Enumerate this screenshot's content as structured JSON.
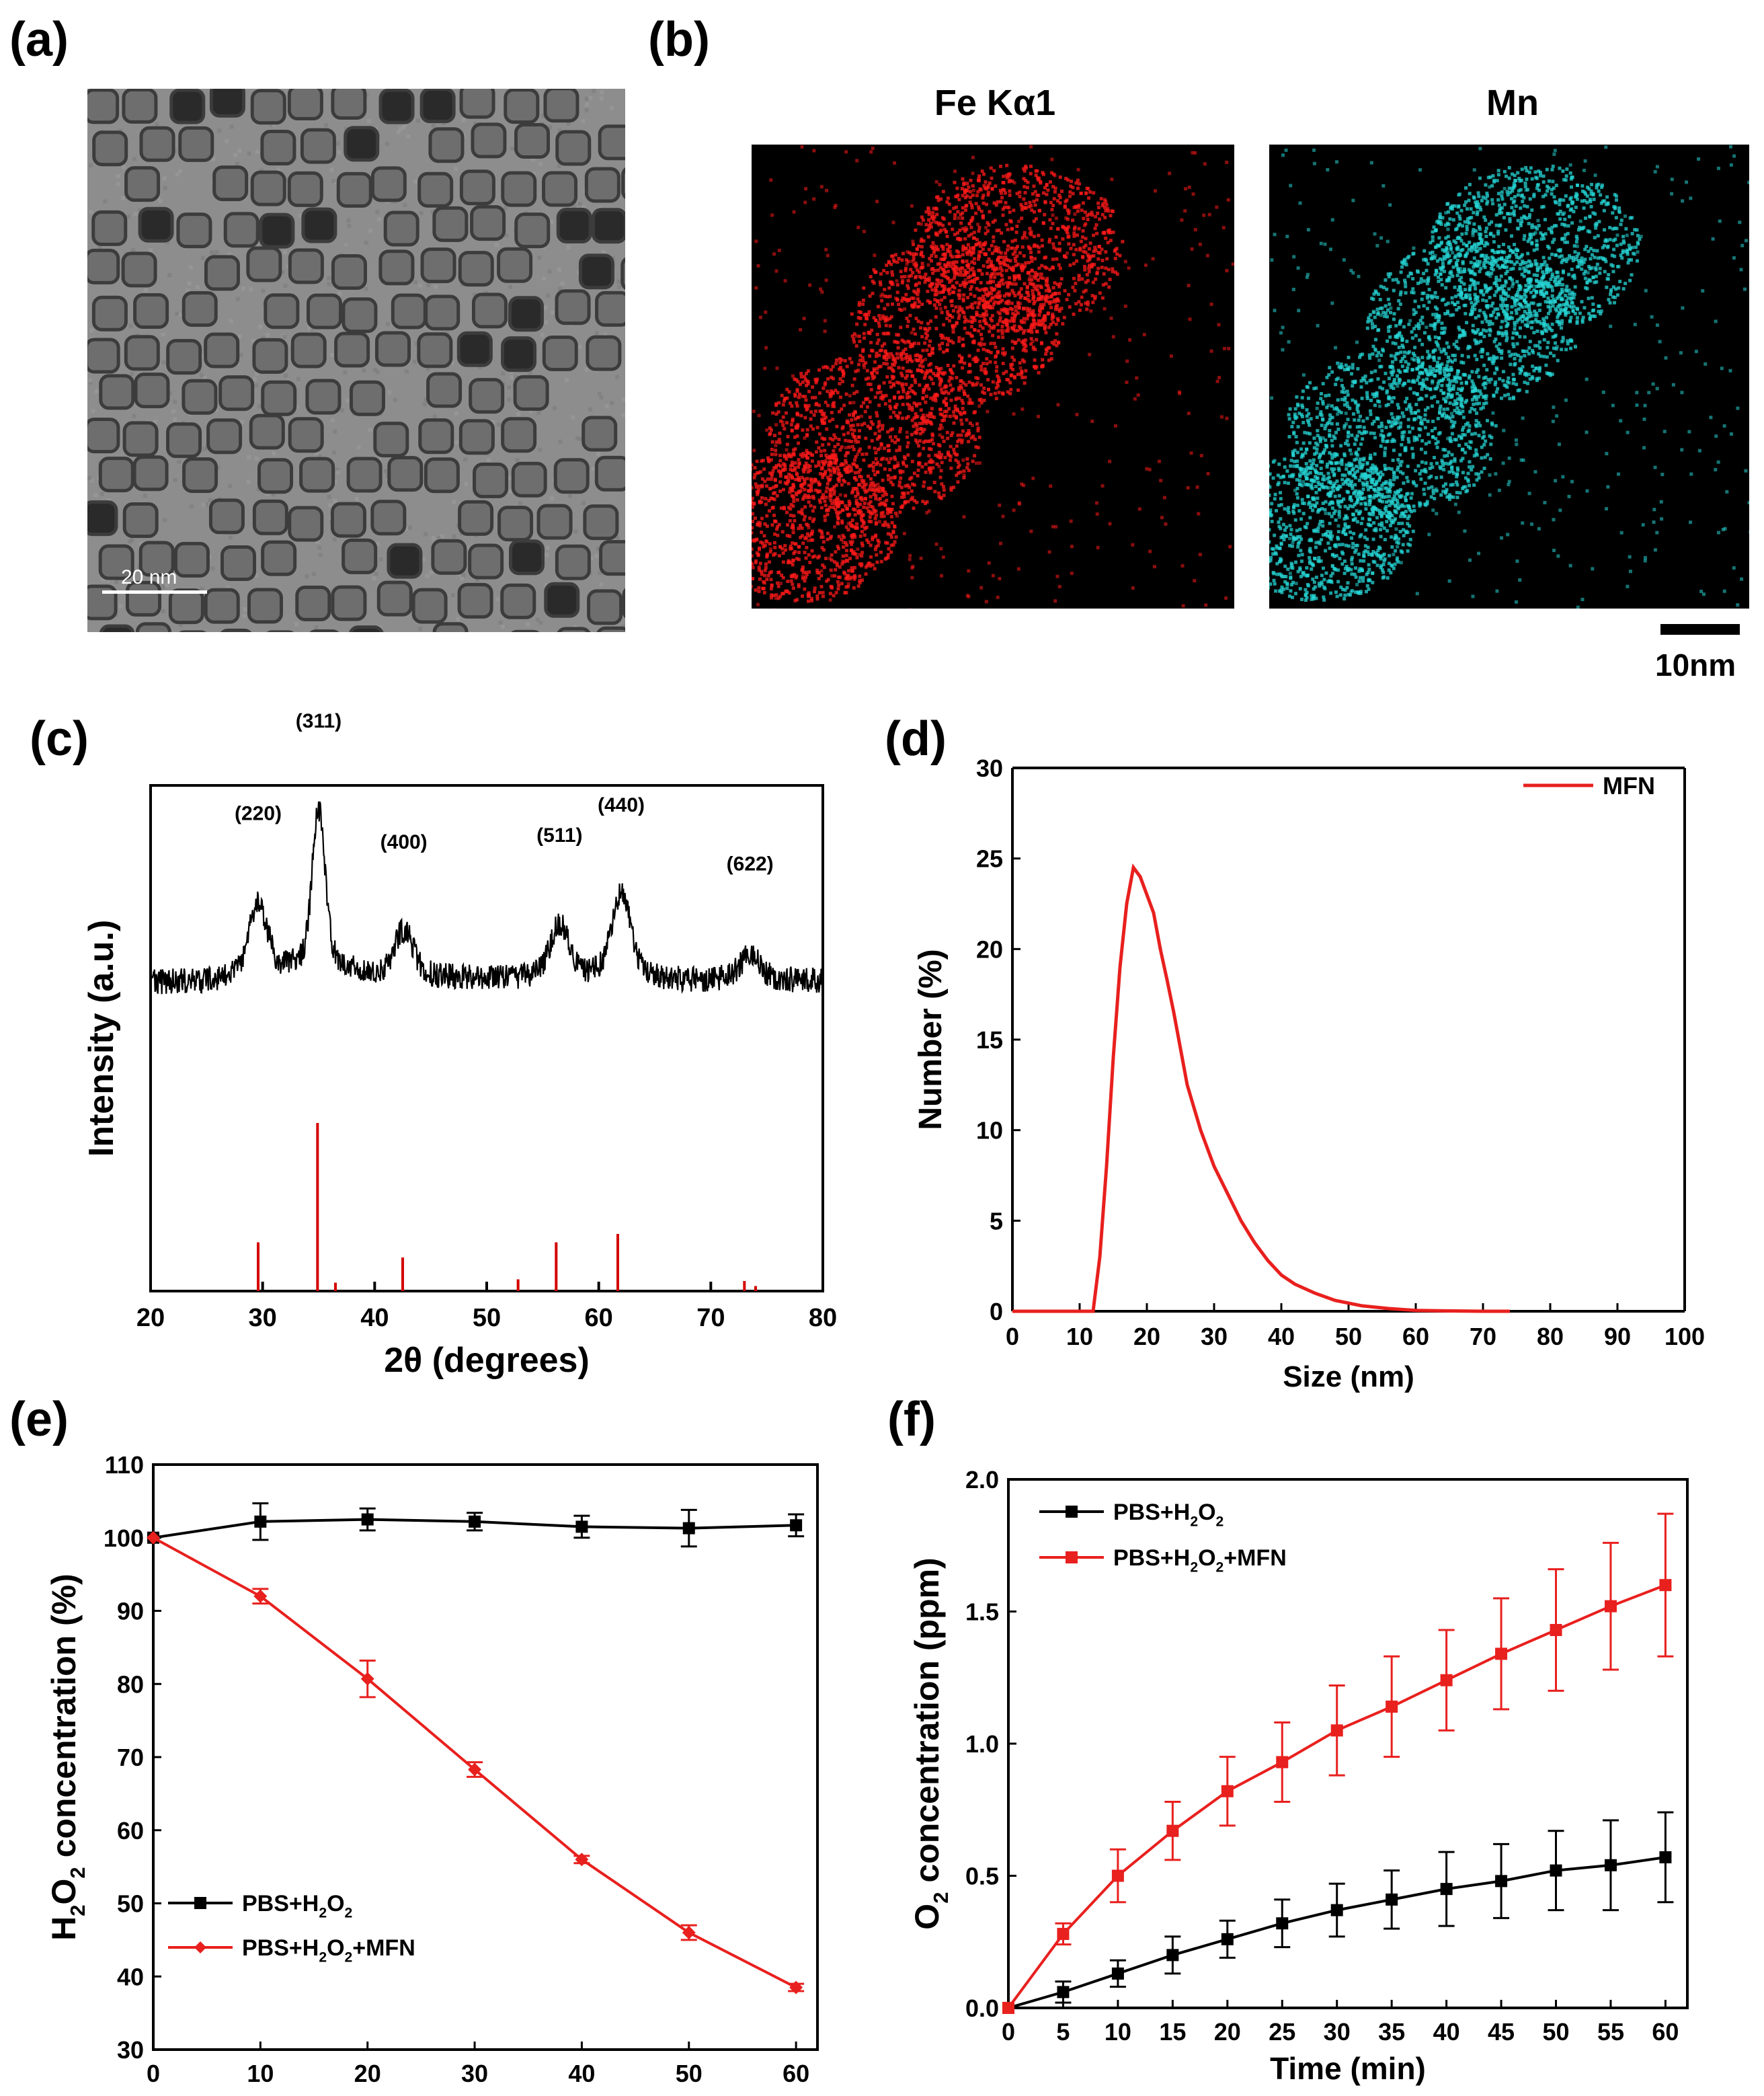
{
  "panels": {
    "a": {
      "label": "(a)",
      "scale_bar": "20 nm"
    },
    "b": {
      "label": "(b)",
      "map_titles": [
        "Fe Kα1",
        "Mn"
      ],
      "scale_bar": "10nm",
      "colors": {
        "fe": "#ff1a1a",
        "mn": "#26d4d4"
      }
    },
    "c": {
      "label": "(c)"
    },
    "d": {
      "label": "(d)"
    },
    "e": {
      "label": "(e)"
    },
    "f": {
      "label": "(f)"
    }
  },
  "chart_data": [
    {
      "id": "c",
      "type": "line",
      "xlabel": "2θ (degrees)",
      "ylabel": "Intensity (a.u.)",
      "xlim": [
        20,
        80
      ],
      "xticks": [
        20,
        30,
        40,
        50,
        60,
        70,
        80
      ],
      "y_ticks_shown": false,
      "peaks": [
        {
          "x": 29.6,
          "label": "(220)",
          "h": 0.45
        },
        {
          "x": 35.0,
          "label": "(311)",
          "h": 1.0
        },
        {
          "x": 42.6,
          "label": "(400)",
          "h": 0.28
        },
        {
          "x": 56.5,
          "label": "(511)",
          "h": 0.32
        },
        {
          "x": 62.0,
          "label": "(440)",
          "h": 0.5
        },
        {
          "x": 73.5,
          "label": "(622)",
          "h": 0.15
        }
      ],
      "reference_lines": [
        {
          "x": 29.6,
          "h": 0.29
        },
        {
          "x": 34.9,
          "h": 1.0
        },
        {
          "x": 36.5,
          "h": 0.05
        },
        {
          "x": 42.5,
          "h": 0.2
        },
        {
          "x": 52.8,
          "h": 0.07
        },
        {
          "x": 56.2,
          "h": 0.29
        },
        {
          "x": 61.7,
          "h": 0.34
        },
        {
          "x": 73.0,
          "h": 0.06
        },
        {
          "x": 74.0,
          "h": 0.03
        }
      ],
      "colors": {
        "pattern": "#000000",
        "reference": "#d40000"
      }
    },
    {
      "id": "d",
      "type": "line",
      "xlabel": "Size (nm)",
      "ylabel": "Number (%)",
      "xlim": [
        0,
        100
      ],
      "ylim": [
        0,
        30
      ],
      "xticks": [
        0,
        10,
        20,
        30,
        40,
        50,
        60,
        70,
        80,
        90,
        100
      ],
      "yticks": [
        0,
        5,
        10,
        15,
        20,
        25,
        30
      ],
      "legend": "top-right",
      "series": [
        {
          "name": "MFN",
          "color": "#e8201e",
          "x": [
            0,
            12,
            13,
            14,
            15,
            16,
            17,
            18,
            19,
            20,
            21,
            22,
            23,
            24,
            25,
            26,
            28,
            30,
            32,
            34,
            36,
            38,
            40,
            42,
            45,
            48,
            52,
            56,
            60,
            65,
            70,
            74
          ],
          "y": [
            0,
            0,
            3,
            8,
            14,
            19,
            22.5,
            24.5,
            24,
            23,
            22,
            20,
            18.3,
            16.5,
            14.5,
            12.5,
            10,
            8,
            6.5,
            5,
            3.8,
            2.8,
            2,
            1.5,
            1,
            0.6,
            0.3,
            0.15,
            0.05,
            0.02,
            0,
            0
          ]
        }
      ]
    },
    {
      "id": "e",
      "type": "line",
      "xlabel": "Time (min)",
      "ylabel": "H2O2 concentration (%)",
      "ylabel_parts": [
        "H",
        "2",
        "O",
        "2",
        " concentration (%)"
      ],
      "xlim": [
        0,
        62
      ],
      "ylim": [
        30,
        110
      ],
      "xticks": [
        0,
        10,
        20,
        30,
        40,
        50,
        60
      ],
      "yticks": [
        30,
        40,
        50,
        60,
        70,
        80,
        90,
        100,
        110
      ],
      "legend": "bottom-left",
      "series": [
        {
          "name": "PBS+H2O2",
          "name_parts": [
            "PBS+H",
            "2",
            "O",
            "2",
            ""
          ],
          "color": "#000000",
          "marker": "square",
          "x": [
            0,
            10,
            20,
            30,
            40,
            50,
            60
          ],
          "y": [
            100,
            102.2,
            102.5,
            102.2,
            101.5,
            101.3,
            101.7
          ],
          "err": [
            0,
            2.5,
            1.5,
            1.2,
            1.5,
            2.5,
            1.5
          ]
        },
        {
          "name": "PBS+H2O2+MFN",
          "name_parts": [
            "PBS+H",
            "2",
            "O",
            "2",
            "+MFN"
          ],
          "color": "#e8201e",
          "marker": "diamond",
          "x": [
            0,
            10,
            20,
            30,
            40,
            50,
            60
          ],
          "y": [
            100,
            92,
            80.7,
            68.3,
            56,
            46,
            38.5
          ],
          "err": [
            0,
            1,
            2.5,
            1,
            0.5,
            1,
            0.5
          ]
        }
      ]
    },
    {
      "id": "f",
      "type": "line",
      "xlabel": "Time (min)",
      "ylabel": "O2 concentration (ppm)",
      "ylabel_parts": [
        "O",
        "2",
        " concentration (ppm)"
      ],
      "xlim": [
        0,
        62
      ],
      "ylim": [
        0,
        2
      ],
      "xticks": [
        0,
        5,
        10,
        15,
        20,
        25,
        30,
        35,
        40,
        45,
        50,
        55,
        60
      ],
      "yticks": [
        "0.0",
        "0.5",
        "1.0",
        "1.5",
        "2.0"
      ],
      "legend": "top-left",
      "series": [
        {
          "name": "PBS+H2O2",
          "name_parts": [
            "PBS+H",
            "2",
            "O",
            "2",
            ""
          ],
          "color": "#000000",
          "marker": "square",
          "x": [
            0,
            5,
            10,
            15,
            20,
            25,
            30,
            35,
            40,
            45,
            50,
            55,
            60
          ],
          "y": [
            0,
            0.06,
            0.13,
            0.2,
            0.26,
            0.32,
            0.37,
            0.41,
            0.45,
            0.48,
            0.52,
            0.54,
            0.57
          ],
          "err": [
            0,
            0.04,
            0.05,
            0.07,
            0.07,
            0.09,
            0.1,
            0.11,
            0.14,
            0.14,
            0.15,
            0.17,
            0.17
          ]
        },
        {
          "name": "PBS+H2O2+MFN",
          "name_parts": [
            "PBS+H",
            "2",
            "O",
            "2",
            "+MFN"
          ],
          "color": "#e8201e",
          "marker": "square",
          "x": [
            0,
            5,
            10,
            15,
            20,
            25,
            30,
            35,
            40,
            45,
            50,
            55,
            60
          ],
          "y": [
            0,
            0.28,
            0.5,
            0.67,
            0.82,
            0.93,
            1.05,
            1.14,
            1.24,
            1.34,
            1.43,
            1.52,
            1.6
          ],
          "err": [
            0,
            0.04,
            0.1,
            0.11,
            0.13,
            0.15,
            0.17,
            0.19,
            0.19,
            0.21,
            0.23,
            0.24,
            0.27
          ]
        }
      ]
    }
  ]
}
